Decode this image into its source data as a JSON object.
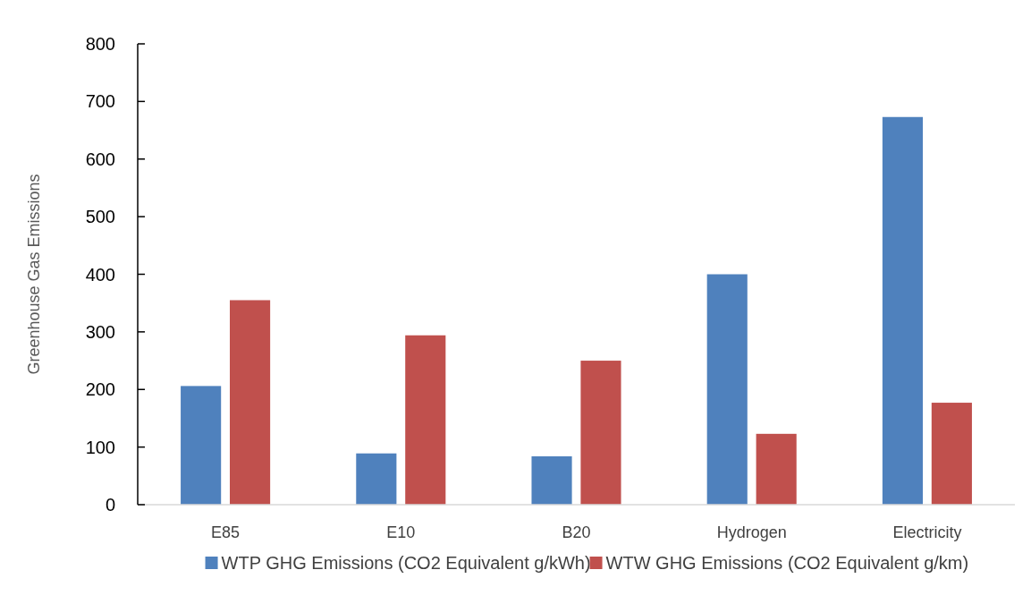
{
  "chart_data": {
    "type": "bar",
    "ylabel": "Greenhouse Gas Emissions",
    "categories": [
      "E85",
      "E10",
      "B20",
      "Hydrogen",
      "Electricity"
    ],
    "series": [
      {
        "name": "WTP GHG Emissions (CO2 Equivalent g/kWh)",
        "color": "#4f81bd",
        "values": [
          206,
          89,
          84,
          400,
          673
        ]
      },
      {
        "name": "WTW GHG Emissions (CO2 Equivalent g/km)",
        "color": "#c0504d",
        "values": [
          355,
          294,
          250,
          123,
          177
        ]
      }
    ],
    "ylim": [
      0,
      800
    ],
    "yticks": [
      0,
      100,
      200,
      300,
      400,
      500,
      600,
      700,
      800
    ],
    "grid": false,
    "legend": "bottom"
  }
}
